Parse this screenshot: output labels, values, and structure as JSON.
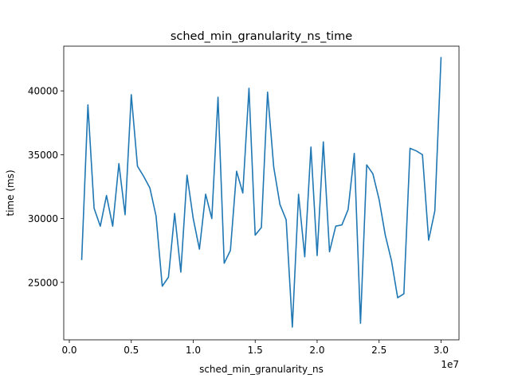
{
  "chart_data": {
    "type": "line",
    "title": "sched_min_granularity_ns_time",
    "xlabel": "sched_min_granularity_ns",
    "ylabel": "time (ms)",
    "x_offset_label": "1e7",
    "xlim": [
      -450000.0,
      31450000.0
    ],
    "ylim": [
      20500,
      43500
    ],
    "x_ticks": [
      0,
      5000000,
      10000000,
      15000000,
      20000000,
      25000000,
      30000000
    ],
    "x_tick_labels": [
      "0.0",
      "0.5",
      "1.0",
      "1.5",
      "2.0",
      "2.5",
      "3.0"
    ],
    "y_ticks": [
      25000,
      30000,
      35000,
      40000
    ],
    "y_tick_labels": [
      "25000",
      "30000",
      "35000",
      "40000"
    ],
    "grid": false,
    "color": "#1f77b4",
    "series": [
      {
        "x": [
          1000000,
          1500000,
          2000000,
          2500000,
          3000000,
          3500000,
          4000000,
          4500000,
          5000000,
          5500000,
          6000000,
          6500000,
          7000000,
          7500000,
          8000000,
          8500000,
          9000000,
          9500000,
          10000000,
          10500000,
          11000000,
          11500000,
          12000000,
          12500000,
          13000000,
          13500000,
          14000000,
          14500000,
          15000000,
          15500000,
          16000000,
          16500000,
          17000000,
          17500000,
          18000000,
          18500000,
          19000000,
          19500000,
          20000000,
          20500000,
          21000000,
          21500000,
          22000000,
          22500000,
          23000000,
          23500000,
          24000000,
          24500000,
          25000000,
          25500000,
          26000000,
          26500000,
          27000000,
          27500000,
          28000000,
          28500000,
          29000000,
          29500000,
          30000000
        ],
        "values": [
          26800,
          38900,
          30800,
          29400,
          31800,
          29400,
          34300,
          30300,
          39700,
          34100,
          33300,
          32400,
          30200,
          24700,
          25400,
          30400,
          25800,
          33400,
          30000,
          27600,
          31900,
          30000,
          39500,
          26500,
          27500,
          33700,
          32000,
          40200,
          28700,
          29300,
          39900,
          34000,
          31100,
          29900,
          21500,
          31900,
          27000,
          35600,
          27100,
          36000,
          27400,
          29400,
          29500,
          30700,
          35100,
          21800,
          34200,
          33500,
          31500,
          28700,
          26700,
          23800,
          24100,
          35500,
          35300,
          35000,
          28300,
          30600,
          42600
        ]
      }
    ]
  }
}
